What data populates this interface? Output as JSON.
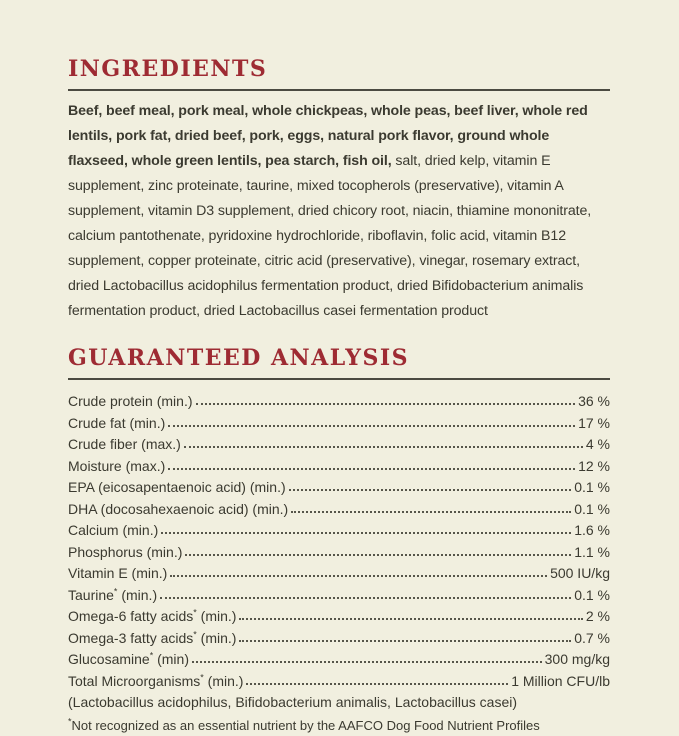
{
  "page": {
    "background_color": "#f1efdf",
    "accent_color": "#9e2b33",
    "text_color": "#3b3a30",
    "rule_color": "#4b4a41"
  },
  "ingredients": {
    "heading": "INGREDIENTS",
    "bold_text": "Beef, beef meal, pork meal, whole chickpeas, whole peas, beef liver, whole red lentils, pork fat, dried beef, pork, eggs, natural pork flavor, ground whole flaxseed, whole green lentils, pea starch, fish oil,",
    "regular_text": " salt, dried kelp, vitamin E supplement, zinc proteinate, taurine, mixed tocopherols (preservative), vitamin A supplement, vitamin D3 supplement, dried chicory root, niacin, thiamine mononitrate, calcium pantothenate, pyridoxine hydrochloride, riboflavin, folic acid, vitamin B12 supplement, copper proteinate, citric acid (preservative), vinegar, rosemary extract, dried Lactobacillus acidophilus fermentation product, dried Bifidobacterium animalis fermentation product, dried Lactobacillus casei fermentation product"
  },
  "analysis": {
    "heading": "GUARANTEED ANALYSIS",
    "rows": [
      {
        "name": "Crude protein",
        "sup": "",
        "qualifier": " (min.)",
        "value": "36 %"
      },
      {
        "name": "Crude fat",
        "sup": "",
        "qualifier": " (min.)",
        "value": "17 %"
      },
      {
        "name": "Crude fiber",
        "sup": "",
        "qualifier": " (max.)",
        "value": "4 %"
      },
      {
        "name": "Moisture",
        "sup": "",
        "qualifier": " (max.)",
        "value": "12 %"
      },
      {
        "name": "EPA (eicosapentaenoic acid)",
        "sup": "",
        "qualifier": " (min.)",
        "value": "0.1 %"
      },
      {
        "name": "DHA (docosahexaenoic acid)",
        "sup": "",
        "qualifier": " (min.)",
        "value": "0.1 %"
      },
      {
        "name": "Calcium",
        "sup": "",
        "qualifier": " (min.)",
        "value": "1.6 %"
      },
      {
        "name": "Phosphorus",
        "sup": "",
        "qualifier": " (min.)",
        "value": "1.1 %"
      },
      {
        "name": "Vitamin E",
        "sup": "",
        "qualifier": " (min.)",
        "value": "500 IU/kg"
      },
      {
        "name": "Taurine",
        "sup": "*",
        "qualifier": " (min.)",
        "value": "0.1 %"
      },
      {
        "name": "Omega-6 fatty acids",
        "sup": "*",
        "qualifier": " (min.)",
        "value": "2 %"
      },
      {
        "name": "Omega-3 fatty acids",
        "sup": "*",
        "qualifier": " (min.)",
        "value": "0.7 %"
      },
      {
        "name": "Glucosamine",
        "sup": "*",
        "qualifier": " (min)",
        "value": "300 mg/kg"
      },
      {
        "name": "Total Microorganisms",
        "sup": "*",
        "qualifier": " (min.)",
        "value": "1 Million CFU/lb"
      }
    ],
    "microorganisms_note": "(Lactobacillus acidophilus, Bifidobacterium animalis, Lactobacillus casei)",
    "footnote_sup": "*",
    "footnote_text": "Not recognized as an essential nutrient by the AAFCO Dog Food Nutrient Profiles"
  }
}
